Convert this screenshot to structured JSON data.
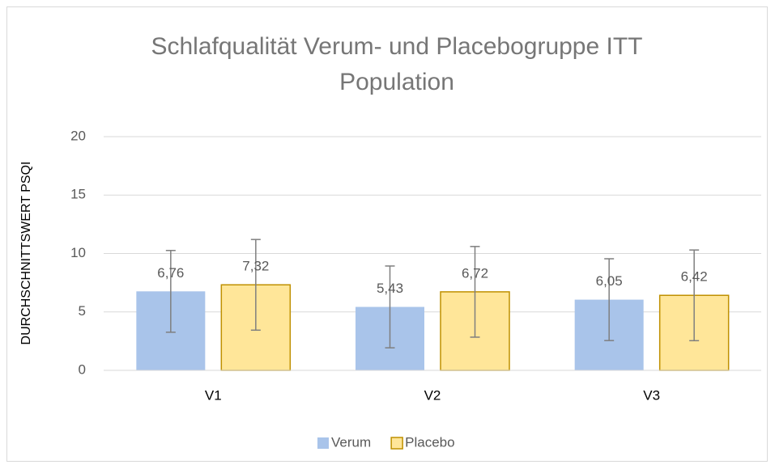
{
  "chart_data": {
    "type": "bar",
    "title": "Schlafqualität Verum- und Placebogruppe ITT Population",
    "y_label": "DURCHSCHNITTSWERT PSQI",
    "categories": [
      "V1",
      "V2",
      "V3"
    ],
    "series": [
      {
        "name": "Verum",
        "color": "#a9c4ea",
        "values": [
          6.76,
          5.43,
          6.05
        ],
        "value_labels": [
          "6,76",
          "5,43",
          "6,05"
        ],
        "errors": [
          3.5,
          3.5,
          3.5
        ]
      },
      {
        "name": "Placebo",
        "color": "#ffe699",
        "edge_color": "#bf9000",
        "values": [
          7.32,
          6.72,
          6.42
        ],
        "value_labels": [
          "7,32",
          "6,72",
          "6,42"
        ],
        "errors": [
          3.88,
          3.88,
          3.88
        ]
      }
    ],
    "ylim": [
      0,
      20
    ],
    "yticks": [
      0,
      5,
      10,
      15,
      20
    ],
    "grid": true,
    "legend": "bottom"
  }
}
